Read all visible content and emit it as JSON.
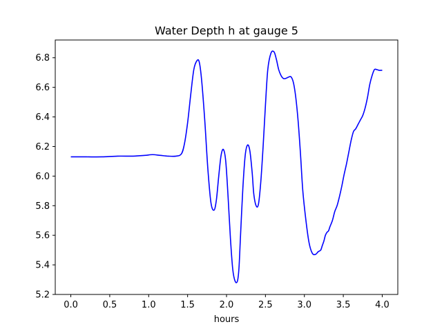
{
  "chart_data": {
    "type": "line",
    "title": "Water Depth h at gauge 5",
    "xlabel": "hours",
    "ylabel": "",
    "xlim": [
      -0.2,
      4.2
    ],
    "ylim": [
      5.2,
      6.92
    ],
    "xticks": [
      0.0,
      0.5,
      1.0,
      1.5,
      2.0,
      2.5,
      3.0,
      3.5,
      4.0
    ],
    "xtick_labels": [
      "0.0",
      "0.5",
      "1.0",
      "1.5",
      "2.0",
      "2.5",
      "3.0",
      "3.5",
      "4.0"
    ],
    "yticks": [
      5.2,
      5.4,
      5.6,
      5.8,
      6.0,
      6.2,
      6.4,
      6.6,
      6.8
    ],
    "ytick_labels": [
      "5.2",
      "5.4",
      "5.6",
      "5.8",
      "6.0",
      "6.2",
      "6.4",
      "6.6",
      "6.8"
    ],
    "grid": false,
    "legend": "none",
    "color": "#0000ff",
    "series": [
      {
        "x": [
          0.0,
          0.2,
          0.4,
          0.6,
          0.8,
          0.95,
          1.05,
          1.15,
          1.25,
          1.35,
          1.42,
          1.46,
          1.5,
          1.54,
          1.58,
          1.62,
          1.65,
          1.68,
          1.72,
          1.76,
          1.8,
          1.84,
          1.87,
          1.9,
          1.93,
          1.96,
          1.99,
          2.02,
          2.05,
          2.08,
          2.11,
          2.14,
          2.16,
          2.18,
          2.21,
          2.24,
          2.27,
          2.3,
          2.33,
          2.35,
          2.38,
          2.41,
          2.44,
          2.47,
          2.5,
          2.53,
          2.57,
          2.61,
          2.64,
          2.67,
          2.7,
          2.73,
          2.76,
          2.8,
          2.83,
          2.86,
          2.89,
          2.92,
          2.95,
          2.98,
          3.02,
          3.06,
          3.1,
          3.14,
          3.18,
          3.21,
          3.23,
          3.25,
          3.27,
          3.29,
          3.31,
          3.33,
          3.36,
          3.39,
          3.42,
          3.45,
          3.48,
          3.51,
          3.54,
          3.57,
          3.6,
          3.63,
          3.66,
          3.69,
          3.72,
          3.75,
          3.78,
          3.81,
          3.84,
          3.87,
          3.9,
          3.93,
          3.96,
          3.98,
          4.0
        ],
        "y": [
          6.13,
          6.13,
          6.13,
          6.135,
          6.135,
          6.14,
          6.145,
          6.14,
          6.135,
          6.135,
          6.15,
          6.22,
          6.36,
          6.55,
          6.72,
          6.78,
          6.77,
          6.65,
          6.38,
          6.05,
          5.82,
          5.77,
          5.84,
          6.0,
          6.14,
          6.18,
          6.1,
          5.86,
          5.58,
          5.37,
          5.29,
          5.29,
          5.38,
          5.6,
          5.92,
          6.14,
          6.21,
          6.17,
          6.02,
          5.88,
          5.8,
          5.81,
          5.96,
          6.2,
          6.48,
          6.72,
          6.83,
          6.84,
          6.79,
          6.72,
          6.68,
          6.66,
          6.66,
          6.67,
          6.67,
          6.63,
          6.53,
          6.37,
          6.15,
          5.9,
          5.7,
          5.55,
          5.48,
          5.47,
          5.49,
          5.5,
          5.53,
          5.56,
          5.6,
          5.62,
          5.63,
          5.66,
          5.7,
          5.76,
          5.8,
          5.86,
          5.93,
          6.01,
          6.08,
          6.16,
          6.24,
          6.3,
          6.32,
          6.35,
          6.38,
          6.41,
          6.46,
          6.53,
          6.62,
          6.68,
          6.72,
          6.72,
          6.715,
          6.715,
          6.715
        ]
      }
    ]
  }
}
